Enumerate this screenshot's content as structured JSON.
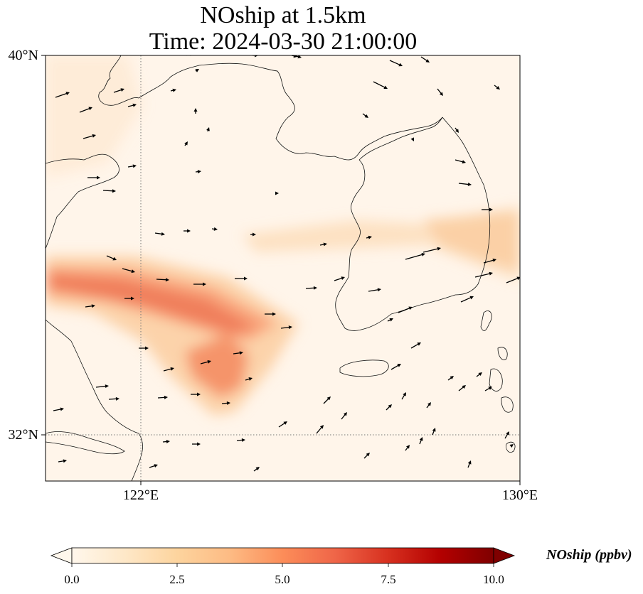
{
  "title": {
    "line1": "NOship at 1.5km",
    "line2": "Time: 2024-03-30 21:00:00"
  },
  "map": {
    "lon_range": [
      119,
      130
    ],
    "lat_range": [
      31,
      40
    ],
    "lat_labels": [
      "40°N",
      "32°N"
    ],
    "lon_labels": [
      "122°E",
      "130°E"
    ],
    "gridlines": {
      "lon": 122,
      "lat": 32,
      "style": "dotted"
    },
    "field": "NOship concentration",
    "high_concentration_regions": [
      {
        "description": "plume",
        "lon": [
          119.2,
          124.5
        ],
        "lat": [
          33.5,
          34.8
        ],
        "approx_max": 5.5
      },
      {
        "description": "plume tail",
        "lon": [
          122.8,
          124.2
        ],
        "lat": [
          32.6,
          33.6
        ],
        "approx_max": 4.5
      },
      {
        "description": "band",
        "lon": [
          125.5,
          130
        ],
        "lat": [
          35.0,
          36.0
        ],
        "approx_max": 2.5
      }
    ],
    "vectors": "wind arrows"
  },
  "colorbar": {
    "label": "NOship (ppbv)",
    "colormap": "OrRd",
    "ticks": [
      "0.0",
      "2.5",
      "5.0",
      "7.5",
      "10.0"
    ],
    "range": [
      0,
      10
    ],
    "extend": "both"
  }
}
